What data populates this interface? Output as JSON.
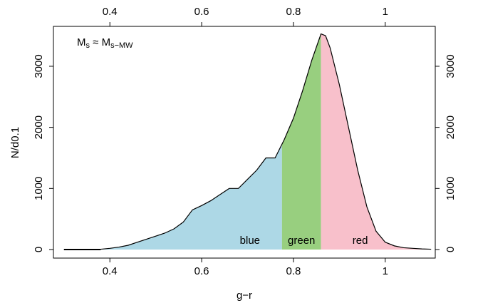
{
  "chart_data": {
    "type": "area",
    "xlabel": "g−r",
    "ylabel": "N/d0.1",
    "annotation": [
      "M",
      "s",
      " ≈ M",
      "s−MW"
    ],
    "x": [
      0.3,
      0.32,
      0.34,
      0.36,
      0.38,
      0.4,
      0.42,
      0.44,
      0.46,
      0.48,
      0.5,
      0.52,
      0.54,
      0.56,
      0.58,
      0.6,
      0.62,
      0.64,
      0.66,
      0.68,
      0.7,
      0.72,
      0.74,
      0.76,
      0.78,
      0.8,
      0.82,
      0.84,
      0.86,
      0.87,
      0.88,
      0.9,
      0.92,
      0.94,
      0.96,
      0.98,
      1.0,
      1.02,
      1.04,
      1.06,
      1.08,
      1.1
    ],
    "series": [
      {
        "color": "#000000",
        "values": [
          0,
          0,
          0,
          0,
          5,
          20,
          40,
          70,
          120,
          170,
          220,
          270,
          340,
          450,
          650,
          720,
          800,
          900,
          1000,
          1000,
          1150,
          1300,
          1500,
          1500,
          1800,
          2150,
          2600,
          3100,
          3530,
          3500,
          3300,
          2700,
          2000,
          1300,
          700,
          300,
          120,
          60,
          30,
          20,
          10,
          5
        ]
      }
    ],
    "boundaries": [
      0.775,
      0.86
    ],
    "regions": [
      {
        "label": "blue",
        "color": "#add8e6"
      },
      {
        "label": "green",
        "color": "#98cf7f"
      },
      {
        "label": "red",
        "color": "#f8c0cb"
      }
    ],
    "xlim": [
      0.277,
      1.109
    ],
    "ylim": [
      -140,
      3653
    ],
    "xticks": [
      0.4,
      0.6,
      0.8,
      1
    ],
    "yticks": [
      0,
      1000,
      2000,
      3000
    ]
  }
}
